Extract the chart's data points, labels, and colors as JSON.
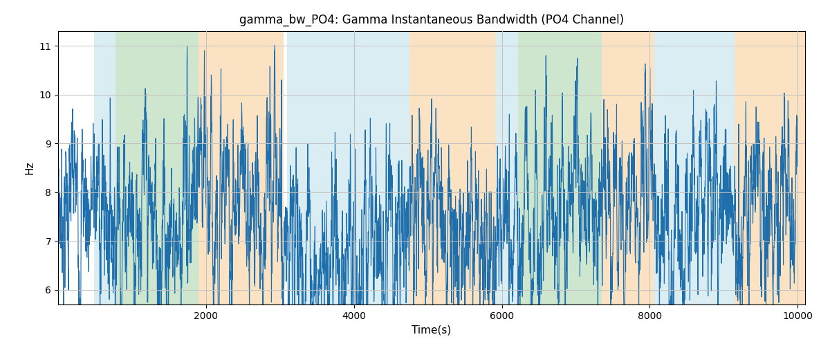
{
  "title": "gamma_bw_PO4: Gamma Instantaneous Bandwidth (PO4 Channel)",
  "xlabel": "Time(s)",
  "ylabel": "Hz",
  "xlim": [
    0,
    10100
  ],
  "ylim": [
    5.7,
    11.3
  ],
  "yticks": [
    6,
    7,
    8,
    9,
    10,
    11
  ],
  "xticks": [
    2000,
    4000,
    6000,
    8000,
    10000
  ],
  "line_color": "#1f6fad",
  "line_width": 0.8,
  "background_color": "#ffffff",
  "grid_color": "#c0c0c0",
  "bands": [
    {
      "xmin": 490,
      "xmax": 780,
      "color": "#add8e6",
      "alpha": 0.45
    },
    {
      "xmin": 780,
      "xmax": 1900,
      "color": "#90c990",
      "alpha": 0.45
    },
    {
      "xmin": 1900,
      "xmax": 3050,
      "color": "#f5c07a",
      "alpha": 0.45
    },
    {
      "xmin": 3100,
      "xmax": 4750,
      "color": "#add8e6",
      "alpha": 0.45
    },
    {
      "xmin": 4750,
      "xmax": 5920,
      "color": "#f5c07a",
      "alpha": 0.45
    },
    {
      "xmin": 5920,
      "xmax": 6220,
      "color": "#add8e6",
      "alpha": 0.45
    },
    {
      "xmin": 6220,
      "xmax": 7350,
      "color": "#90c990",
      "alpha": 0.45
    },
    {
      "xmin": 7350,
      "xmax": 8050,
      "color": "#f5c07a",
      "alpha": 0.45
    },
    {
      "xmin": 8050,
      "xmax": 9150,
      "color": "#add8e6",
      "alpha": 0.45
    },
    {
      "xmin": 9150,
      "xmax": 10100,
      "color": "#f5c07a",
      "alpha": 0.45
    }
  ],
  "figsize": [
    12.0,
    5.0
  ],
  "dpi": 100,
  "seed": 7,
  "n_points": 5000,
  "base_mean": 7.75
}
